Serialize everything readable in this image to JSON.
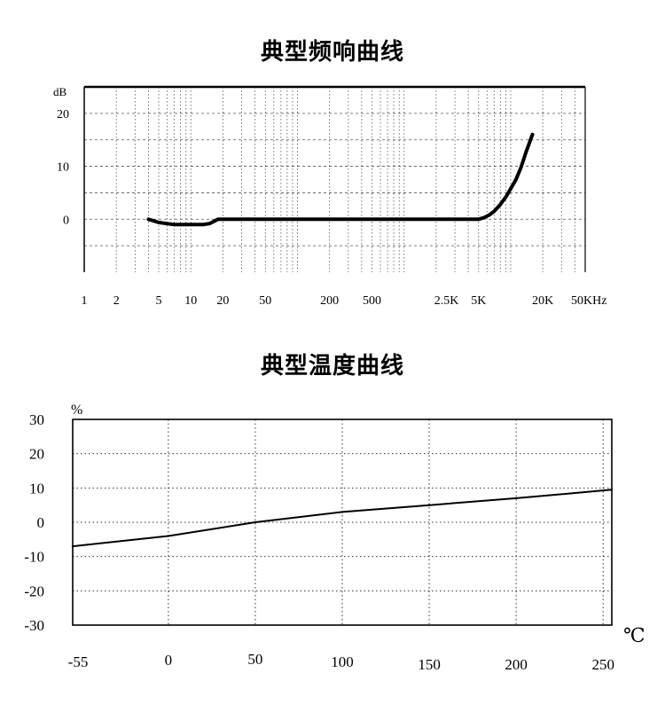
{
  "chart_data": [
    {
      "type": "line",
      "title": "典型频响曲线",
      "x_scale": "log",
      "x_unit_label": "50KHz",
      "y_unit_label": "dB",
      "x_tick_labels": [
        {
          "label": "1",
          "value": 1
        },
        {
          "label": "2",
          "value": 2
        },
        {
          "label": "5",
          "value": 5
        },
        {
          "label": "10",
          "value": 10
        },
        {
          "label": "20",
          "value": 20
        },
        {
          "label": "50",
          "value": 50
        },
        {
          "label": "200",
          "value": 200
        },
        {
          "label": "500",
          "value": 500
        },
        {
          "label": "2.5K",
          "value": 2500
        },
        {
          "label": "5K",
          "value": 5000
        },
        {
          "label": "20K",
          "value": 20000
        }
      ],
      "y_ticks": [
        0,
        10,
        20
      ],
      "xlim": [
        1,
        50000
      ],
      "ylim": [
        -10,
        25
      ],
      "grid": true,
      "series": [
        {
          "x": [
            4,
            5,
            7,
            10,
            13,
            15,
            18,
            25,
            50,
            100,
            200,
            500,
            1000,
            2000,
            4000,
            5000,
            5600,
            6300,
            7000,
            8000,
            9000,
            10000,
            11200,
            12500,
            14000,
            16000
          ],
          "y": [
            0,
            -0.6,
            -1,
            -1,
            -1,
            -0.8,
            0,
            0,
            0,
            0,
            0,
            0,
            0,
            0,
            0,
            0,
            0.3,
            0.8,
            1.5,
            2.8,
            4.2,
            5.8,
            7.5,
            9.8,
            12.8,
            16
          ]
        }
      ]
    },
    {
      "type": "line",
      "title": "典型温度曲线",
      "x_unit_label": "℃",
      "y_unit_label": "%",
      "x_ticks": [
        -55,
        0,
        50,
        100,
        150,
        200,
        250
      ],
      "y_ticks": [
        30,
        20,
        10,
        0,
        -10,
        -20,
        -30
      ],
      "xlim": [
        -55,
        255
      ],
      "ylim": [
        -30,
        30
      ],
      "grid": true,
      "series": [
        {
          "x": [
            -55,
            0,
            50,
            100,
            150,
            200,
            255
          ],
          "y": [
            -7,
            -4,
            0,
            3,
            5,
            7,
            9.5
          ]
        }
      ]
    }
  ]
}
